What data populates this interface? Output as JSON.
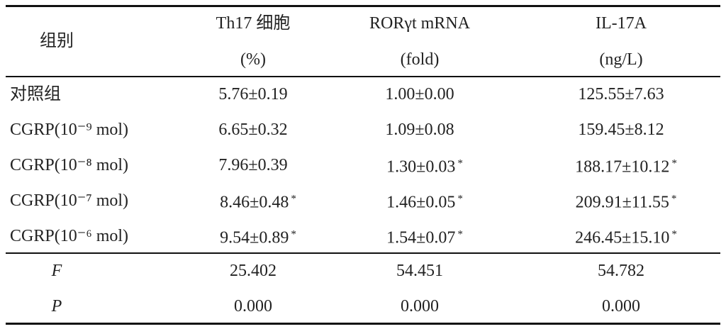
{
  "table": {
    "header": {
      "group": "组别",
      "columns": [
        {
          "name": "Th17 细胞",
          "unit": "(%)"
        },
        {
          "name": "RORγt mRNA",
          "unit": "(fold)"
        },
        {
          "name": "IL-17A",
          "unit": "(ng/L)"
        }
      ]
    },
    "rows": [
      {
        "label": "对照组",
        "cells": [
          {
            "text": "5.76±0.19"
          },
          {
            "text": "1.00±0.00"
          },
          {
            "text": "125.55±7.63"
          }
        ]
      },
      {
        "label": "CGRP(10⁻⁹ mol)",
        "cells": [
          {
            "text": "6.65±0.32"
          },
          {
            "text": "1.09±0.08"
          },
          {
            "text": "159.45±8.12"
          }
        ]
      },
      {
        "label": "CGRP(10⁻⁸ mol)",
        "cells": [
          {
            "text": "7.96±0.39"
          },
          {
            "text": "1.30±0.03",
            "mark": "*"
          },
          {
            "text": "188.17±10.12",
            "mark": "*"
          }
        ]
      },
      {
        "label": "CGRP(10⁻⁷ mol)",
        "cells": [
          {
            "text": "8.46±0.48",
            "mark": "*"
          },
          {
            "text": "1.46±0.05",
            "mark": "*"
          },
          {
            "text": "209.91±11.55",
            "mark": "*"
          }
        ]
      },
      {
        "label": "CGRP(10⁻⁶ mol)",
        "cells": [
          {
            "text": "9.54±0.89",
            "mark": "*"
          },
          {
            "text": "1.54±0.07",
            "mark": "*"
          },
          {
            "text": "246.45±15.10",
            "mark": "*"
          }
        ]
      }
    ],
    "stats": [
      {
        "label": "F",
        "cells": [
          {
            "text": "25.402"
          },
          {
            "text": "54.451"
          },
          {
            "text": "54.782"
          }
        ]
      },
      {
        "label": "P",
        "cells": [
          {
            "text": "0.000"
          },
          {
            "text": "0.000"
          },
          {
            "text": "0.000"
          }
        ]
      }
    ]
  }
}
